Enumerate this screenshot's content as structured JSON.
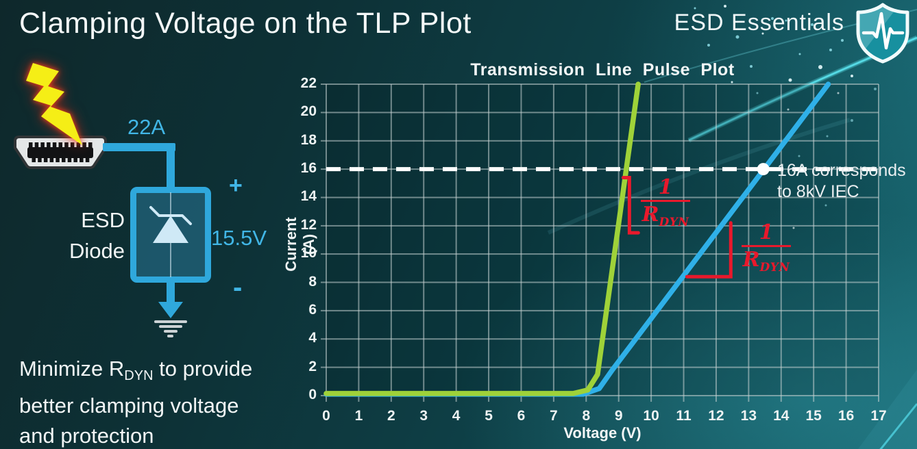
{
  "slide": {
    "title": "Clamping Voltage on the TLP Plot",
    "brand": "ESD Essentials",
    "text_color": "#f2f6f6"
  },
  "note": {
    "line1_pre": "Minimize R",
    "line1_sub": "DYN",
    "line1_post": " to provide",
    "line2": "better clamping voltage",
    "line3": "and protection"
  },
  "diagram": {
    "accent_color": "#2fa8dc",
    "label_color": "#41b6e6",
    "surge_current_label": "22A",
    "device_label_line1": "ESD",
    "device_label_line2": "Diode",
    "plus_label": "+",
    "clamp_voltage_label": "15.5V",
    "minus_label": "-",
    "icons": {
      "surge": "lightning-icon",
      "connector": "hdmi-connector-icon",
      "device_symbol": "zener-diode-icon",
      "ground": "ground-icon",
      "brand": "shield-pulse-icon"
    }
  },
  "chart_data": {
    "type": "line",
    "title": "Transmission Line Pulse Plot",
    "xlabel": "Voltage (V)",
    "ylabel": "Current (A)",
    "xlim": [
      0,
      17
    ],
    "ylim": [
      0,
      22
    ],
    "xticks": [
      0,
      1,
      2,
      3,
      4,
      5,
      6,
      7,
      8,
      9,
      10,
      11,
      12,
      13,
      14,
      15,
      16,
      17
    ],
    "yticks": [
      0,
      2,
      4,
      6,
      8,
      10,
      12,
      14,
      16,
      18,
      20,
      22
    ],
    "grid": true,
    "series": [
      {
        "name": "low-rdyn-esd-diode",
        "color": "#9fd239",
        "points": [
          [
            0,
            0.15
          ],
          [
            7.6,
            0.15
          ],
          [
            8.05,
            0.4
          ],
          [
            8.35,
            1.5
          ],
          [
            9.6,
            22
          ]
        ]
      },
      {
        "name": "high-rdyn-esd-diode",
        "color": "#2fb0e8",
        "points": [
          [
            0,
            0.1
          ],
          [
            7.9,
            0.1
          ],
          [
            8.4,
            0.5
          ],
          [
            8.8,
            1.8
          ],
          [
            15.45,
            22
          ]
        ]
      }
    ],
    "reference_line": {
      "y": 16,
      "color": "#ffffff",
      "style": "dashed"
    },
    "marker": {
      "x": 13.45,
      "y": 16,
      "color": "#ffffff",
      "label_line1": "16A corresponds",
      "label_line2": "to 8kV IEC"
    },
    "slope_annotations": [
      {
        "curve": "low-rdyn-esd-diode",
        "shape": "bracket",
        "color": "#e8192c",
        "x": 9.33,
        "i_top": 15.4,
        "i_bottom": 11.5,
        "frac": {
          "num": "1",
          "den": "R",
          "den_sub": "DYN"
        }
      },
      {
        "curve": "high-rdyn-esd-diode",
        "shape": "right-angle",
        "color": "#e8192c",
        "x_left": 11.1,
        "x_right": 12.45,
        "i_bottom": 8.4,
        "i_top": 12.2,
        "frac": {
          "num": "1",
          "den": "R",
          "den_sub": "DYN"
        }
      }
    ]
  }
}
